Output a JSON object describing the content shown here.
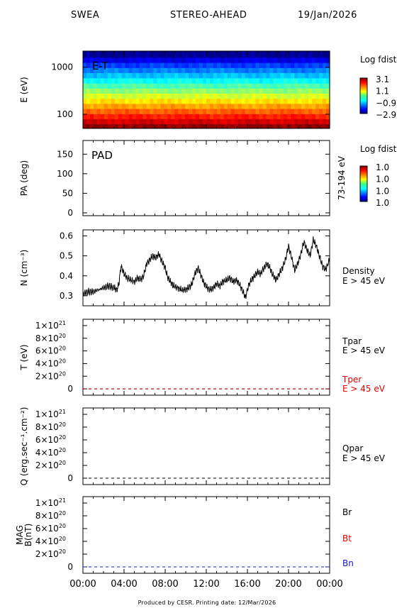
{
  "header": {
    "instrument": "SWEA",
    "spacecraft": "STEREO-AHEAD",
    "date": "19/Jan/2026"
  },
  "footer": "Produced by CESR.   Printing date: 12/Mar/2026",
  "time_axis": {
    "range_hours": [
      0,
      24
    ],
    "tick_labels": [
      "00:00",
      "04:00",
      "08:00",
      "12:00",
      "16:00",
      "20:00",
      "00:00"
    ]
  },
  "colors": {
    "black": "#000000",
    "red": "#e00000",
    "blue": "#1a1acc"
  },
  "chart_data": [
    {
      "id": "et",
      "type": "heatmap",
      "ylabel": "E (eV)",
      "yscale": "log",
      "ylim": [
        50,
        2200
      ],
      "y_ticks": [
        {
          "value": 100,
          "label": "100"
        },
        {
          "value": 1000,
          "label": "1000"
        }
      ],
      "inset_label": "E-T",
      "colorbar": {
        "title": "Log fdist",
        "tick_labels": [
          "3.1",
          "1.1",
          "−0.9",
          "−2.9"
        ],
        "range": [
          -2.9,
          3.1
        ]
      },
      "energy_bins_eV": [
        55,
        70,
        90,
        115,
        150,
        190,
        245,
        315,
        400,
        520,
        670,
        860,
        1100,
        1420,
        1830
      ],
      "log_fdist": [
        3.0,
        2.6,
        2.2,
        1.8,
        1.4,
        1.0,
        0.6,
        0.2,
        -0.2,
        -0.6,
        -1.0,
        -1.4,
        -1.8,
        -2.3,
        -2.8
      ]
    },
    {
      "id": "pad",
      "type": "heatmap",
      "ylabel": "PA (deg)",
      "ylim": [
        0,
        180
      ],
      "y_ticks": [
        {
          "value": 0,
          "label": "0"
        },
        {
          "value": 50,
          "label": "50"
        },
        {
          "value": 100,
          "label": "100"
        },
        {
          "value": 150,
          "label": "150"
        }
      ],
      "inset_label": "PAD",
      "right_label": "73-194 eV",
      "colorbar": {
        "title": "Log fdist",
        "tick_labels": [
          "1.0",
          "1.0",
          "1.0",
          "1.0"
        ]
      }
    },
    {
      "id": "density",
      "type": "line",
      "ylabel": "N (cm⁻³)",
      "ylim": [
        0.25,
        0.63
      ],
      "y_ticks": [
        {
          "value": 0.3,
          "label": "0.3"
        },
        {
          "value": 0.4,
          "label": "0.4"
        },
        {
          "value": 0.5,
          "label": "0.5"
        },
        {
          "value": 0.6,
          "label": "0.6"
        }
      ],
      "series": [
        {
          "name": "Density",
          "subtitle": "E > 45 eV",
          "color": "#000000",
          "x": [
            0,
            0.5,
            1.0,
            1.5,
            2.0,
            2.5,
            3.0,
            3.3,
            3.5,
            3.7,
            4.0,
            4.3,
            4.6,
            5.0,
            5.3,
            5.6,
            5.9,
            6.2,
            6.5,
            6.8,
            7.1,
            7.4,
            7.7,
            8.0,
            8.2,
            8.5,
            8.8,
            9.2,
            9.6,
            10.0,
            10.3,
            10.6,
            10.9,
            11.2,
            11.5,
            11.8,
            12.1,
            12.4,
            12.7,
            13.0,
            13.3,
            13.6,
            14.0,
            14.3,
            14.6,
            14.9,
            15.2,
            15.5,
            15.8,
            16.1,
            16.4,
            16.7,
            17.0,
            17.3,
            17.6,
            17.9,
            18.2,
            18.5,
            18.8,
            19.1,
            19.4,
            19.7,
            20.0,
            20.3,
            20.6,
            20.9,
            21.2,
            21.5,
            21.8,
            22.1,
            22.4,
            22.7,
            23.0,
            23.3,
            23.6,
            24.0
          ],
          "y": [
            0.31,
            0.32,
            0.32,
            0.33,
            0.34,
            0.35,
            0.34,
            0.33,
            0.36,
            0.45,
            0.41,
            0.39,
            0.38,
            0.37,
            0.39,
            0.38,
            0.4,
            0.46,
            0.48,
            0.5,
            0.49,
            0.51,
            0.47,
            0.44,
            0.4,
            0.37,
            0.35,
            0.34,
            0.33,
            0.33,
            0.34,
            0.36,
            0.41,
            0.44,
            0.4,
            0.36,
            0.34,
            0.33,
            0.34,
            0.36,
            0.35,
            0.37,
            0.38,
            0.39,
            0.37,
            0.38,
            0.36,
            0.33,
            0.29,
            0.35,
            0.38,
            0.4,
            0.42,
            0.41,
            0.44,
            0.46,
            0.44,
            0.4,
            0.38,
            0.41,
            0.44,
            0.48,
            0.55,
            0.49,
            0.43,
            0.46,
            0.51,
            0.57,
            0.53,
            0.5,
            0.58,
            0.55,
            0.5,
            0.45,
            0.43,
            0.48
          ]
        }
      ]
    },
    {
      "id": "temperature",
      "type": "line",
      "ylabel": "T (eV)",
      "ylim": [
        -1e+20,
        1.1e+21
      ],
      "y_ticks": [
        {
          "value": 0,
          "label": "0",
          "exp": ""
        },
        {
          "value": 2e+20,
          "label": "2×10",
          "exp": "20"
        },
        {
          "value": 4e+20,
          "label": "4×10",
          "exp": "20"
        },
        {
          "value": 6e+20,
          "label": "6×10",
          "exp": "20"
        },
        {
          "value": 8e+20,
          "label": "8×10",
          "exp": "20"
        },
        {
          "value": 1e+21,
          "label": "1×10",
          "exp": "21"
        }
      ],
      "series": [
        {
          "name": "Tpar",
          "subtitle": "E > 45 eV",
          "color": "#000000",
          "x": [
            0,
            24
          ],
          "y": [
            0,
            0
          ]
        },
        {
          "name": "Tper",
          "subtitle": "E > 45 eV",
          "color": "#e00000",
          "x": [
            0,
            24
          ],
          "y": [
            0,
            0
          ]
        }
      ]
    },
    {
      "id": "heatflux",
      "type": "line",
      "ylabel": "Q (erg.sec⁻¹.cm⁻²)",
      "ylim": [
        -1e+20,
        1.1e+21
      ],
      "y_ticks": [
        {
          "value": 0,
          "label": "0",
          "exp": ""
        },
        {
          "value": 2e+20,
          "label": "2×10",
          "exp": "20"
        },
        {
          "value": 4e+20,
          "label": "4×10",
          "exp": "20"
        },
        {
          "value": 6e+20,
          "label": "6×10",
          "exp": "20"
        },
        {
          "value": 8e+20,
          "label": "8×10",
          "exp": "20"
        },
        {
          "value": 1e+21,
          "label": "1×10",
          "exp": "21"
        }
      ],
      "series": [
        {
          "name": "Qpar",
          "subtitle": "E > 45 eV",
          "color": "#000000",
          "x": [
            0,
            24
          ],
          "y": [
            0,
            0
          ]
        }
      ]
    },
    {
      "id": "mag",
      "type": "line",
      "ylabel": "MAG",
      "ylabel2": "B(nT)",
      "ylim": [
        -1e+20,
        1.1e+21
      ],
      "y_ticks": [
        {
          "value": 0,
          "label": "0",
          "exp": ""
        },
        {
          "value": 2e+20,
          "label": "2×10",
          "exp": "20"
        },
        {
          "value": 4e+20,
          "label": "4×10",
          "exp": "20"
        },
        {
          "value": 6e+20,
          "label": "6×10",
          "exp": "20"
        },
        {
          "value": 8e+20,
          "label": "8×10",
          "exp": "20"
        },
        {
          "value": 1e+21,
          "label": "1×10",
          "exp": "21"
        }
      ],
      "series": [
        {
          "name": "Br",
          "color": "#000000",
          "x": [
            0,
            24
          ],
          "y": [
            0,
            0
          ]
        },
        {
          "name": "Bt",
          "color": "#e00000",
          "x": [
            0,
            24
          ],
          "y": [
            0,
            0
          ]
        },
        {
          "name": "Bn",
          "color": "#1a1acc",
          "x": [
            0,
            24
          ],
          "y": [
            0,
            0
          ]
        }
      ]
    }
  ]
}
